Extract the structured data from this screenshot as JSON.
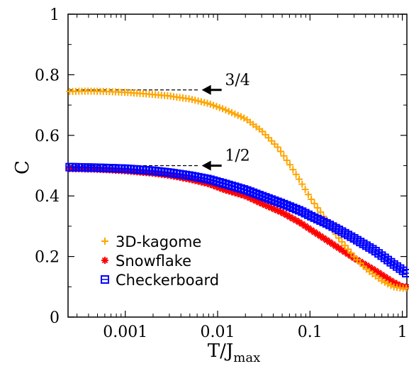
{
  "chart_data": {
    "type": "scatter",
    "xlabel": "T/J",
    "xlabel_sub": "max",
    "ylabel": "C",
    "xscale": "log",
    "xlim": [
      0.00024,
      1.12
    ],
    "ylim": [
      0,
      1
    ],
    "x_ticks": [
      {
        "value": 0.001,
        "label": "0.001"
      },
      {
        "value": 0.01,
        "label": "0.01"
      },
      {
        "value": 0.1,
        "label": "0.1"
      },
      {
        "value": 1,
        "label": "1"
      }
    ],
    "y_ticks": [
      {
        "value": 0,
        "label": "0"
      },
      {
        "value": 0.2,
        "label": "0.2"
      },
      {
        "value": 0.4,
        "label": "0.4"
      },
      {
        "value": 0.6,
        "label": "0.6"
      },
      {
        "value": 0.8,
        "label": "0.8"
      },
      {
        "value": 1,
        "label": "1"
      }
    ],
    "grid": false,
    "legend_position": "bottom-left",
    "series": [
      {
        "name": "3D-kagome",
        "marker": "plus",
        "color": "#FFA500",
        "points": [
          [
            0.00025,
            0.745
          ],
          [
            0.0004,
            0.746
          ],
          [
            0.0006,
            0.745
          ],
          [
            0.001,
            0.742
          ],
          [
            0.0015,
            0.738
          ],
          [
            0.002,
            0.735
          ],
          [
            0.003,
            0.73
          ],
          [
            0.005,
            0.72
          ],
          [
            0.008,
            0.705
          ],
          [
            0.012,
            0.685
          ],
          [
            0.02,
            0.655
          ],
          [
            0.03,
            0.615
          ],
          [
            0.045,
            0.56
          ],
          [
            0.06,
            0.505
          ],
          [
            0.08,
            0.445
          ],
          [
            0.1,
            0.395
          ],
          [
            0.15,
            0.32
          ],
          [
            0.2,
            0.265
          ],
          [
            0.3,
            0.2
          ],
          [
            0.4,
            0.16
          ],
          [
            0.6,
            0.12
          ],
          [
            0.8,
            0.1
          ],
          [
            1.0,
            0.095
          ],
          [
            1.1,
            0.095
          ]
        ]
      },
      {
        "name": "Snowflake",
        "marker": "asterisk",
        "color": "#FF0000",
        "points": [
          [
            0.00025,
            0.49
          ],
          [
            0.0005,
            0.488
          ],
          [
            0.001,
            0.483
          ],
          [
            0.002,
            0.475
          ],
          [
            0.003,
            0.468
          ],
          [
            0.005,
            0.455
          ],
          [
            0.008,
            0.44
          ],
          [
            0.012,
            0.42
          ],
          [
            0.02,
            0.4
          ],
          [
            0.03,
            0.375
          ],
          [
            0.05,
            0.345
          ],
          [
            0.08,
            0.31
          ],
          [
            0.1,
            0.29
          ],
          [
            0.15,
            0.255
          ],
          [
            0.2,
            0.23
          ],
          [
            0.3,
            0.195
          ],
          [
            0.5,
            0.155
          ],
          [
            0.8,
            0.115
          ],
          [
            1.0,
            0.1
          ],
          [
            1.1,
            0.1
          ]
        ]
      },
      {
        "name": "Checkerboard",
        "marker": "square",
        "color": "#0000FF",
        "points": [
          [
            0.00025,
            0.495
          ],
          [
            0.0005,
            0.493
          ],
          [
            0.001,
            0.49
          ],
          [
            0.002,
            0.483
          ],
          [
            0.003,
            0.477
          ],
          [
            0.005,
            0.467
          ],
          [
            0.008,
            0.455
          ],
          [
            0.012,
            0.44
          ],
          [
            0.02,
            0.42
          ],
          [
            0.03,
            0.4
          ],
          [
            0.05,
            0.375
          ],
          [
            0.08,
            0.35
          ],
          [
            0.1,
            0.335
          ],
          [
            0.15,
            0.31
          ],
          [
            0.2,
            0.29
          ],
          [
            0.3,
            0.26
          ],
          [
            0.5,
            0.22
          ],
          [
            0.8,
            0.175
          ],
          [
            1.0,
            0.155
          ],
          [
            1.1,
            0.145
          ]
        ]
      }
    ],
    "annotations": [
      {
        "text": "3/4",
        "y": 0.75,
        "x_end": 0.0065,
        "label_x": 0.012,
        "label_y": 0.785
      },
      {
        "text": "1/2",
        "y": 0.5,
        "x_end": 0.0065,
        "label_x": 0.012,
        "label_y": 0.535
      }
    ]
  }
}
